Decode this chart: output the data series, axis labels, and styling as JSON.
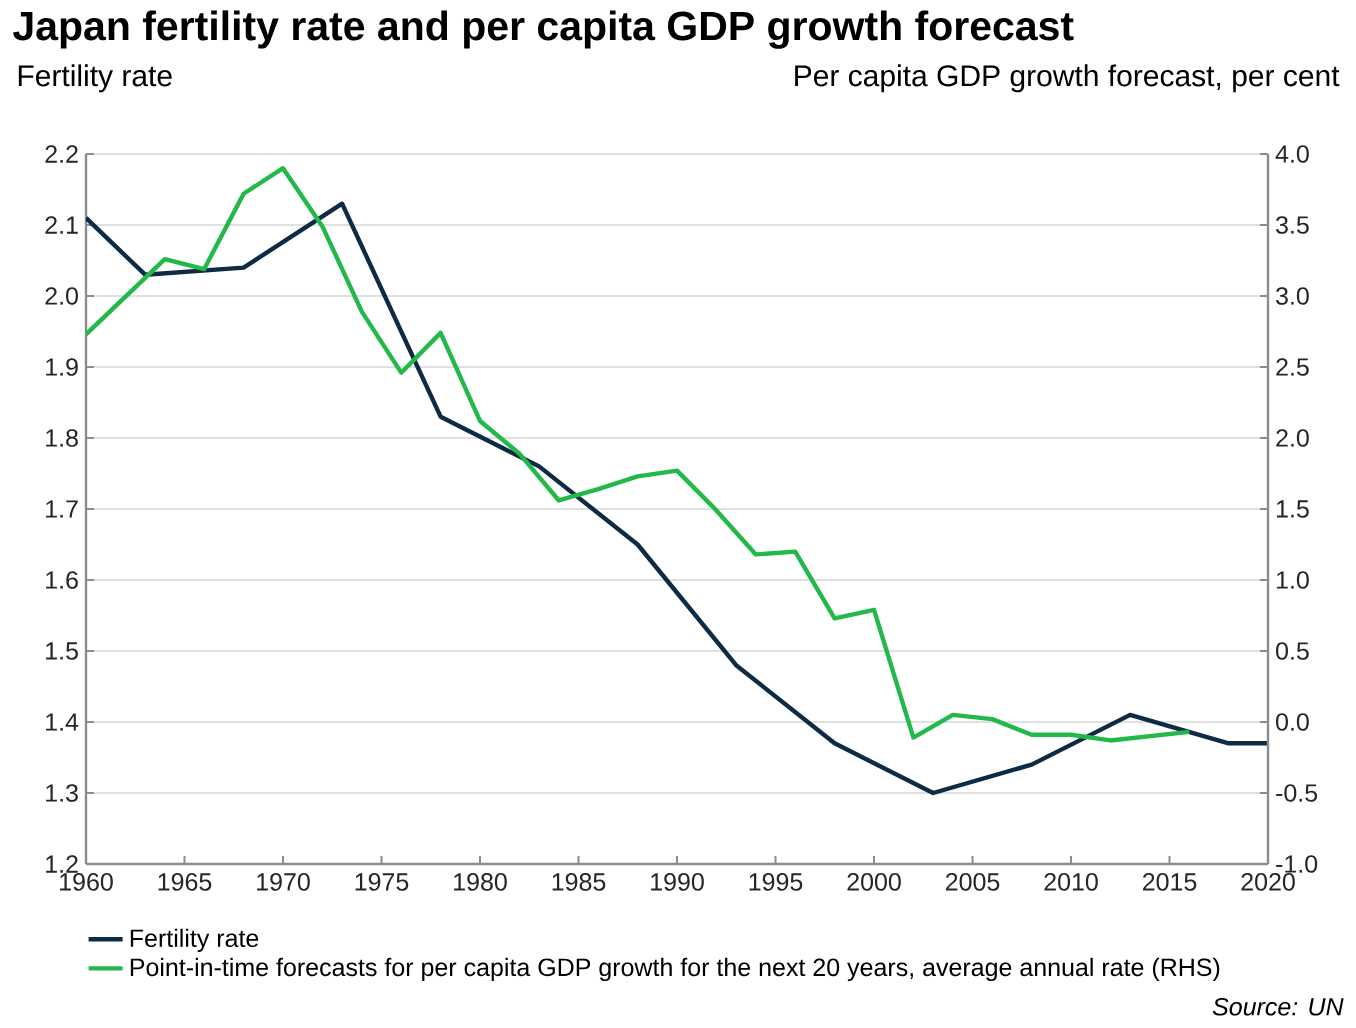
{
  "chart_data": {
    "type": "line",
    "title": "Japan fertility rate and per capita GDP growth forecast",
    "ylabel": "Fertility rate",
    "y2label": "Per capita GDP growth forecast, per cent",
    "series": [
      {
        "name": "Fertility rate",
        "color": "#0d2b45",
        "x": [
          1960,
          1963,
          1968,
          1973,
          1978,
          1983,
          1988,
          1993,
          1998,
          2003,
          2008,
          2013,
          2018,
          2020
        ],
        "values": [
          2.11,
          2.03,
          2.04,
          2.13,
          1.83,
          1.76,
          1.65,
          1.48,
          1.37,
          1.3,
          1.34,
          1.41,
          1.37,
          1.37
        ]
      },
      {
        "name": "Point-in-time forecasts for per capita GDP growth for the next 20 years, average annual rate (RHS)",
        "color": "#22b84a",
        "axis": "y2",
        "x": [
          1960,
          1964,
          1966,
          1968,
          1970,
          1972,
          1974,
          1976,
          1978,
          1980,
          1982,
          1984,
          1986,
          1988,
          1990,
          1992,
          1994,
          1996,
          1998,
          2000,
          2002,
          2004,
          2006,
          2008,
          2010,
          2012,
          2014,
          2016
        ],
        "values": [
          2.73,
          3.26,
          3.19,
          3.72,
          3.9,
          3.49,
          2.89,
          2.46,
          2.74,
          2.12,
          1.89,
          1.56,
          1.64,
          1.73,
          1.77,
          1.49,
          1.18,
          1.2,
          0.73,
          0.79,
          -0.11,
          0.05,
          0.02,
          -0.09,
          -0.09,
          -0.13,
          -0.1,
          -0.07
        ]
      }
    ],
    "xlim": [
      1960,
      2020
    ],
    "xticks": [
      1960,
      1965,
      1970,
      1975,
      1980,
      1985,
      1990,
      1995,
      2000,
      2005,
      2010,
      2015,
      2020
    ],
    "ylim": [
      1.2,
      2.2
    ],
    "yticks": [
      1.2,
      1.3,
      1.4,
      1.5,
      1.6,
      1.7,
      1.8,
      1.9,
      {
        "value": 2,
        "label": "2.0"
      },
      2.1,
      2.2
    ],
    "y2lim": [
      -1,
      4
    ],
    "y2ticks": [
      {
        "value": -1,
        "label": "-1.0"
      },
      -0.5,
      {
        "value": 0,
        "label": "0.0"
      },
      0.5,
      {
        "value": 1,
        "label": "1.0"
      },
      1.5,
      {
        "value": 2,
        "label": "2.0"
      },
      2.5,
      {
        "value": 3,
        "label": "3.0"
      },
      3.5,
      {
        "value": 4,
        "label": "4.0"
      }
    ],
    "grid": "y",
    "legend": "bottom",
    "line_style": "solid",
    "marker": "none",
    "annotations": [
      "Source: UN"
    ]
  }
}
